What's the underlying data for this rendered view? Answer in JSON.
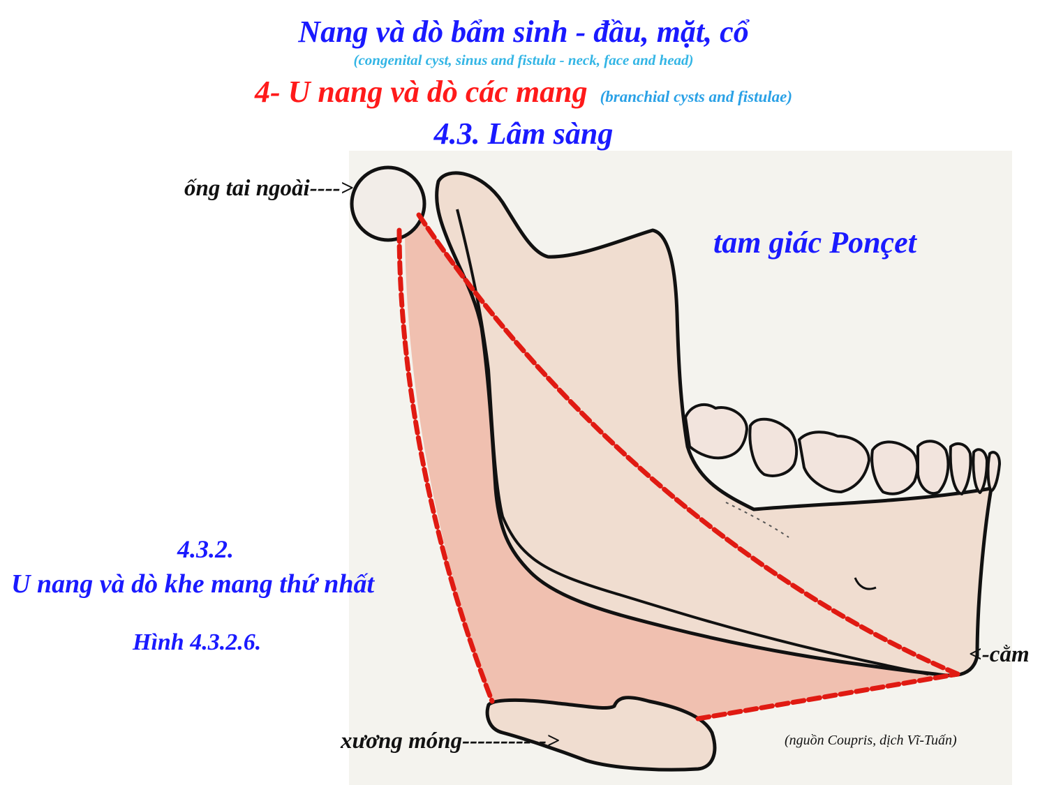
{
  "header": {
    "title": "Nang và dò bẩm sinh - đầu, mặt, cổ",
    "subtitle": "(congenital cyst, sinus and fistula - neck, face and head)",
    "section": "4- U nang và dò các mang",
    "section_en": "(branchial cysts and fistulae)",
    "subsection": "4.3. Lâm sàng"
  },
  "diagram": {
    "labels": {
      "ear_canal": "ống tai ngoài---->",
      "triangle": "tam giác Ponçet",
      "chin": "<-cằm",
      "hyoid": "xương móng----------->",
      "source": "(nguồn Coupris, dịch Vĩ-Tuấn)"
    },
    "colors": {
      "bone_fill": "#f0ddd0",
      "triangle_fill": "#efb6a4",
      "dashed_line": "#e01a12",
      "outline": "#111111",
      "background": "#f4f3ee"
    }
  },
  "side_panel": {
    "number": "4.3.2.",
    "title": "U nang và dò khe mang thứ nhất",
    "figure": "Hình 4.3.2.6."
  }
}
